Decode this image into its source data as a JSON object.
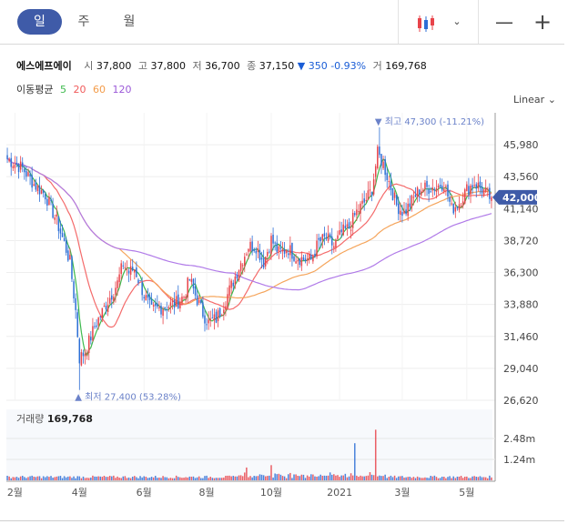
{
  "tabs": [
    {
      "label": "일",
      "active": true
    },
    {
      "label": "주",
      "active": false
    },
    {
      "label": "월",
      "active": false
    }
  ],
  "toolbar": {
    "chart_type_icon": "candlestick-icon",
    "dropdown_icon": "chevron-down-icon",
    "zoom_out": "—",
    "zoom_in": "+"
  },
  "stock": {
    "name": "에스에프에이",
    "open_label": "시",
    "open": "37,800",
    "high_label": "고",
    "high": "37,800",
    "low_label": "저",
    "low": "36,700",
    "close_label": "종",
    "close": "37,150",
    "change": "▼ 350",
    "change_pct": "-0.93%",
    "volume_label": "거",
    "volume": "169,768"
  },
  "moving_average": {
    "label": "이동평균",
    "periods": [
      {
        "value": "5",
        "color": "#3cb94c"
      },
      {
        "value": "20",
        "color": "#f05a5a"
      },
      {
        "value": "60",
        "color": "#f39c4a"
      },
      {
        "value": "120",
        "color": "#9b59d8"
      }
    ]
  },
  "scale_label": "Linear",
  "colors": {
    "up": "#e8434a",
    "down": "#2d6fd6",
    "ma5": "#3cb94c",
    "ma20": "#f46b6b",
    "ma60": "#f5a55c",
    "ma120": "#b07ae8",
    "badge": "#3f5ba8",
    "annotation": "#6b82c9"
  },
  "chart_data": {
    "type": "candlestick",
    "y_ticks": [
      "45,980",
      "43,560",
      "41,140",
      "38,720",
      "36,300",
      "33,880",
      "31,460",
      "29,040",
      "26,620"
    ],
    "y_tick_values": [
      45980,
      43560,
      41140,
      38720,
      36300,
      33880,
      31460,
      29040,
      26620
    ],
    "ylim": [
      26620,
      48400
    ],
    "x_tick_labels": [
      "2월",
      "4월",
      "6월",
      "8월",
      "10월",
      "2021",
      "3월",
      "5월"
    ],
    "x_tick_index": [
      4,
      38,
      72,
      105,
      139,
      175,
      208,
      242
    ],
    "max_annotation": "▼ 최고 47,300 (-11.21%)",
    "min_annotation": "▲ 최저 27,400 (53.28%)",
    "current_price": "42,000",
    "current_value": 42000,
    "high_value": 47300,
    "low_value": 27400,
    "closes_keypoints": [
      [
        0,
        44900
      ],
      [
        8,
        44200
      ],
      [
        14,
        43000
      ],
      [
        20,
        42200
      ],
      [
        26,
        40200
      ],
      [
        30,
        38500
      ],
      [
        33,
        37100
      ],
      [
        36,
        33400
      ],
      [
        38,
        29800
      ],
      [
        41,
        30300
      ],
      [
        46,
        32200
      ],
      [
        52,
        33900
      ],
      [
        58,
        35500
      ],
      [
        61,
        37000
      ],
      [
        64,
        36300
      ],
      [
        67,
        36600
      ],
      [
        72,
        34600
      ],
      [
        76,
        33400
      ],
      [
        82,
        33700
      ],
      [
        88,
        33900
      ],
      [
        93,
        34500
      ],
      [
        96,
        35800
      ],
      [
        99,
        34600
      ],
      [
        103,
        33200
      ],
      [
        106,
        32500
      ],
      [
        110,
        32800
      ],
      [
        113,
        33600
      ],
      [
        118,
        35300
      ],
      [
        122,
        36700
      ],
      [
        127,
        38300
      ],
      [
        131,
        38300
      ],
      [
        135,
        37100
      ],
      [
        139,
        38800
      ],
      [
        143,
        37800
      ],
      [
        148,
        38100
      ],
      [
        152,
        37500
      ],
      [
        156,
        37300
      ],
      [
        160,
        37300
      ],
      [
        164,
        38600
      ],
      [
        168,
        38900
      ],
      [
        172,
        38300
      ],
      [
        176,
        39300
      ],
      [
        180,
        39700
      ],
      [
        184,
        40900
      ],
      [
        188,
        41600
      ],
      [
        192,
        42600
      ],
      [
        195,
        45300
      ],
      [
        198,
        44500
      ],
      [
        201,
        43200
      ],
      [
        205,
        41400
      ],
      [
        209,
        40800
      ],
      [
        213,
        41700
      ],
      [
        217,
        42600
      ],
      [
        221,
        42700
      ],
      [
        226,
        42800
      ],
      [
        230,
        43100
      ],
      [
        234,
        41100
      ],
      [
        238,
        41600
      ],
      [
        242,
        42600
      ],
      [
        246,
        43100
      ],
      [
        250,
        42600
      ],
      [
        254,
        42000
      ]
    ],
    "volume": {
      "label": "거래량",
      "value": "169,768",
      "y_ticks": [
        "2.48m",
        "1.24m"
      ],
      "y_tick_values": [
        2480000,
        1240000
      ]
    }
  }
}
